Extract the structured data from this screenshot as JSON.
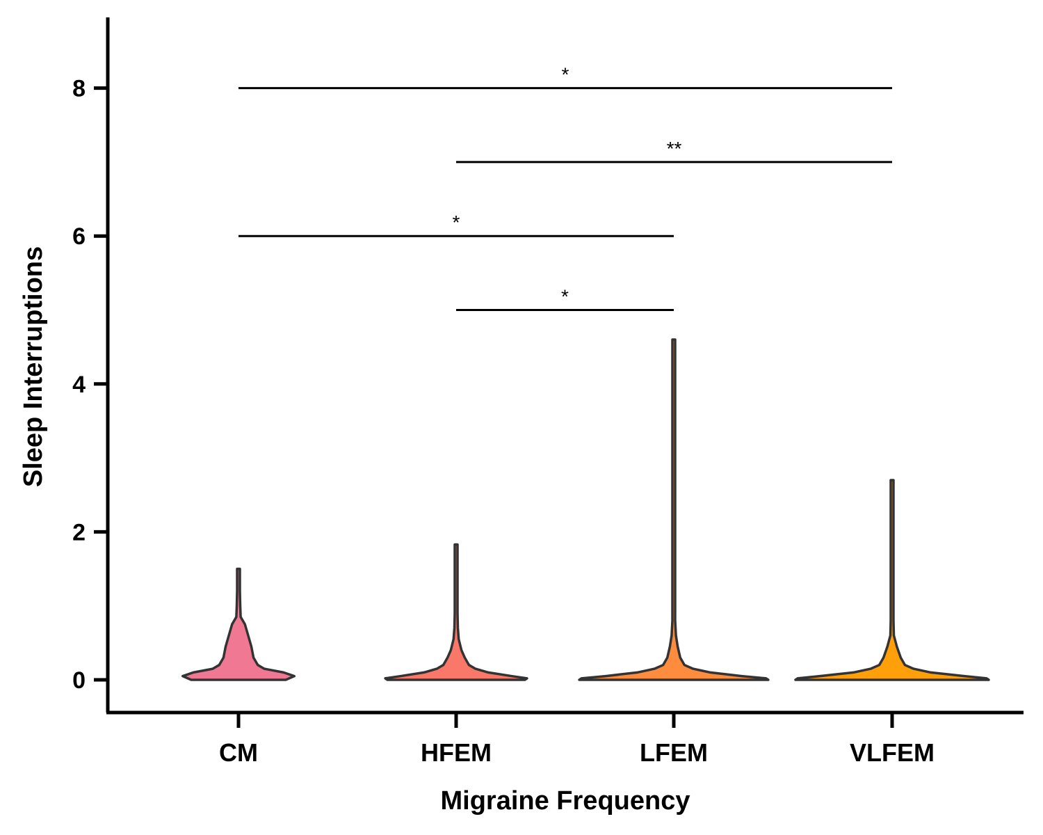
{
  "chart_data": {
    "type": "violin",
    "xlabel": "Migraine Frequency",
    "ylabel": "Sleep Interruptions",
    "ylim": [
      -0.45,
      8.95
    ],
    "yticks": [
      0,
      2,
      4,
      6,
      8
    ],
    "grid": false,
    "categories": [
      "CM",
      "HFEM",
      "LFEM",
      "VLFEM"
    ],
    "series": [
      {
        "category": "CM",
        "color": "#F07893",
        "max": 1.5,
        "density": [
          [
            0,
            0.22
          ],
          [
            0.05,
            0.26
          ],
          [
            0.1,
            0.21
          ],
          [
            0.15,
            0.12
          ],
          [
            0.2,
            0.09
          ],
          [
            0.3,
            0.07
          ],
          [
            0.45,
            0.06
          ],
          [
            0.6,
            0.045
          ],
          [
            0.75,
            0.03
          ],
          [
            0.85,
            0.01
          ],
          [
            1.0,
            0.008
          ],
          [
            1.2,
            0.006
          ],
          [
            1.4,
            0.005
          ],
          [
            1.5,
            0.003
          ]
        ]
      },
      {
        "category": "HFEM",
        "color": "#FA786A",
        "max": 1.83,
        "density": [
          [
            0,
            0.32
          ],
          [
            0.02,
            0.33
          ],
          [
            0.05,
            0.26
          ],
          [
            0.1,
            0.15
          ],
          [
            0.15,
            0.09
          ],
          [
            0.2,
            0.06
          ],
          [
            0.3,
            0.04
          ],
          [
            0.4,
            0.025
          ],
          [
            0.55,
            0.012
          ],
          [
            0.7,
            0.008
          ],
          [
            0.9,
            0.006
          ],
          [
            1.1,
            0.005
          ],
          [
            1.4,
            0.004
          ],
          [
            1.83,
            0.003
          ]
        ]
      },
      {
        "category": "LFEM",
        "color": "#FD8C3E",
        "max": 4.6,
        "density": [
          [
            0,
            0.44
          ],
          [
            0.02,
            0.43
          ],
          [
            0.05,
            0.32
          ],
          [
            0.1,
            0.17
          ],
          [
            0.15,
            0.09
          ],
          [
            0.2,
            0.05
          ],
          [
            0.3,
            0.03
          ],
          [
            0.45,
            0.018
          ],
          [
            0.6,
            0.01
          ],
          [
            0.8,
            0.004
          ],
          [
            1.2,
            0.003
          ],
          [
            2.0,
            0.003
          ],
          [
            3.0,
            0.003
          ],
          [
            4.6,
            0.002
          ]
        ]
      },
      {
        "category": "VLFEM",
        "color": "#FFA00A",
        "max": 2.7,
        "density": [
          [
            0,
            0.45
          ],
          [
            0.02,
            0.44
          ],
          [
            0.05,
            0.34
          ],
          [
            0.1,
            0.18
          ],
          [
            0.15,
            0.1
          ],
          [
            0.2,
            0.06
          ],
          [
            0.3,
            0.04
          ],
          [
            0.45,
            0.022
          ],
          [
            0.6,
            0.008
          ],
          [
            0.8,
            0.004
          ],
          [
            1.2,
            0.003
          ],
          [
            2.0,
            0.003
          ],
          [
            2.7,
            0.002
          ]
        ]
      }
    ],
    "significance": [
      {
        "from": "CM",
        "to": "VLFEM",
        "y": 8,
        "label": "*"
      },
      {
        "from": "HFEM",
        "to": "VLFEM",
        "y": 7,
        "label": "**"
      },
      {
        "from": "CM",
        "to": "LFEM",
        "y": 6,
        "label": "*"
      },
      {
        "from": "HFEM",
        "to": "LFEM",
        "y": 5,
        "label": "*"
      }
    ]
  }
}
